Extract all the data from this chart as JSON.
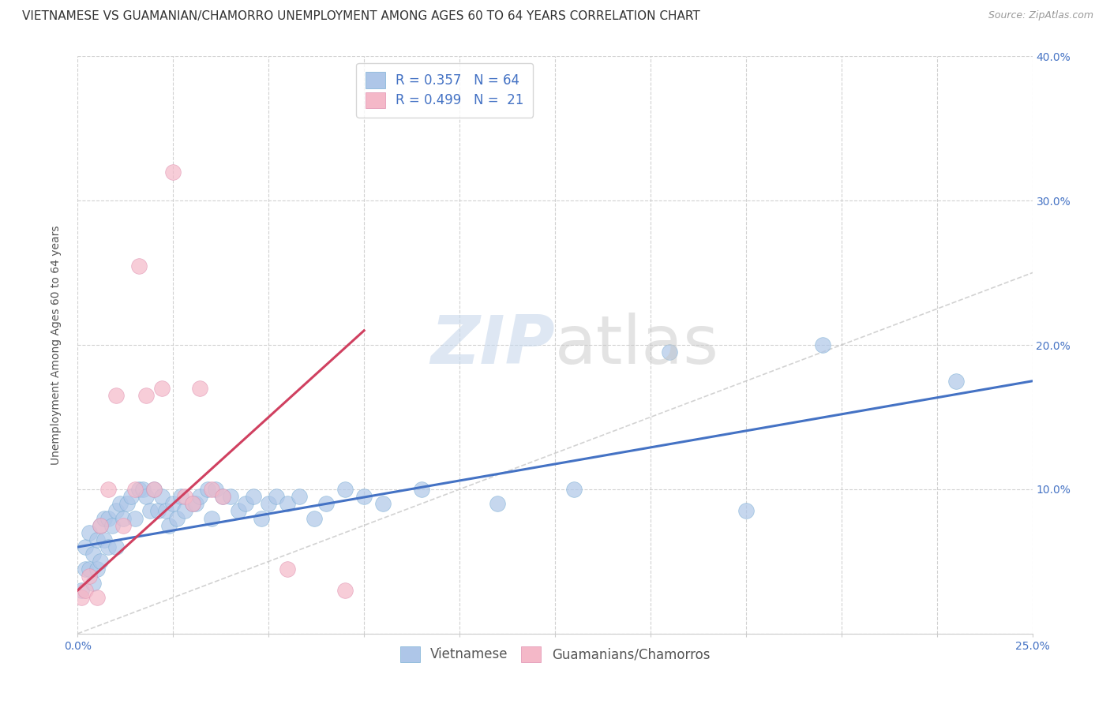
{
  "title": "VIETNAMESE VS GUAMANIAN/CHAMORRO UNEMPLOYMENT AMONG AGES 60 TO 64 YEARS CORRELATION CHART",
  "source": "Source: ZipAtlas.com",
  "ylabel": "Unemployment Among Ages 60 to 64 years",
  "xlim": [
    0.0,
    0.25
  ],
  "ylim": [
    0.0,
    0.4
  ],
  "xticks": [
    0.0,
    0.025,
    0.05,
    0.075,
    0.1,
    0.125,
    0.15,
    0.175,
    0.2,
    0.225,
    0.25
  ],
  "xtick_labels_show": {
    "0.0": "0.0%",
    "0.25": "25.0%"
  },
  "yticks": [
    0.0,
    0.1,
    0.2,
    0.3,
    0.4
  ],
  "ytick_labels": [
    "",
    "10.0%",
    "20.0%",
    "30.0%",
    "40.0%"
  ],
  "legend_entries": [
    {
      "label": "Vietnamese",
      "color": "#aec6e8",
      "edge": "#7bafd4",
      "R": "0.357",
      "N": "64"
    },
    {
      "label": "Guamanians/Chamorros",
      "color": "#f4b8c8",
      "edge": "#e090b0",
      "R": "0.499",
      "N": "21"
    }
  ],
  "blue_scatter_x": [
    0.001,
    0.002,
    0.002,
    0.003,
    0.003,
    0.004,
    0.004,
    0.005,
    0.005,
    0.006,
    0.006,
    0.007,
    0.007,
    0.008,
    0.008,
    0.009,
    0.01,
    0.01,
    0.011,
    0.012,
    0.013,
    0.014,
    0.015,
    0.016,
    0.017,
    0.018,
    0.019,
    0.02,
    0.021,
    0.022,
    0.023,
    0.024,
    0.025,
    0.026,
    0.027,
    0.028,
    0.03,
    0.031,
    0.032,
    0.034,
    0.035,
    0.036,
    0.038,
    0.04,
    0.042,
    0.044,
    0.046,
    0.048,
    0.05,
    0.052,
    0.055,
    0.058,
    0.062,
    0.065,
    0.07,
    0.075,
    0.08,
    0.09,
    0.11,
    0.13,
    0.155,
    0.175,
    0.195,
    0.23
  ],
  "blue_scatter_y": [
    0.03,
    0.045,
    0.06,
    0.045,
    0.07,
    0.035,
    0.055,
    0.045,
    0.065,
    0.05,
    0.075,
    0.065,
    0.08,
    0.06,
    0.08,
    0.075,
    0.085,
    0.06,
    0.09,
    0.08,
    0.09,
    0.095,
    0.08,
    0.1,
    0.1,
    0.095,
    0.085,
    0.1,
    0.085,
    0.095,
    0.085,
    0.075,
    0.09,
    0.08,
    0.095,
    0.085,
    0.09,
    0.09,
    0.095,
    0.1,
    0.08,
    0.1,
    0.095,
    0.095,
    0.085,
    0.09,
    0.095,
    0.08,
    0.09,
    0.095,
    0.09,
    0.095,
    0.08,
    0.09,
    0.1,
    0.095,
    0.09,
    0.1,
    0.09,
    0.1,
    0.195,
    0.085,
    0.2,
    0.175
  ],
  "pink_scatter_x": [
    0.001,
    0.002,
    0.003,
    0.005,
    0.006,
    0.008,
    0.01,
    0.012,
    0.015,
    0.016,
    0.018,
    0.02,
    0.022,
    0.025,
    0.028,
    0.03,
    0.032,
    0.035,
    0.038,
    0.055,
    0.07
  ],
  "pink_scatter_y": [
    0.025,
    0.03,
    0.04,
    0.025,
    0.075,
    0.1,
    0.165,
    0.075,
    0.1,
    0.255,
    0.165,
    0.1,
    0.17,
    0.32,
    0.095,
    0.09,
    0.17,
    0.1,
    0.095,
    0.045,
    0.03
  ],
  "blue_line_x": [
    0.0,
    0.25
  ],
  "blue_line_y": [
    0.06,
    0.175
  ],
  "pink_line_x": [
    0.0,
    0.075
  ],
  "pink_line_y": [
    0.03,
    0.21
  ],
  "diag_line_color": "#c0c0c0",
  "blue_line_color": "#4472c4",
  "pink_line_color": "#d04060",
  "background_color": "#ffffff",
  "grid_color": "#cccccc",
  "title_fontsize": 11,
  "source_fontsize": 9,
  "axis_label_fontsize": 10,
  "tick_fontsize": 10,
  "legend_fontsize": 12,
  "watermark_zip_color": "#c8d8ec",
  "watermark_atlas_color": "#c8c8c8"
}
